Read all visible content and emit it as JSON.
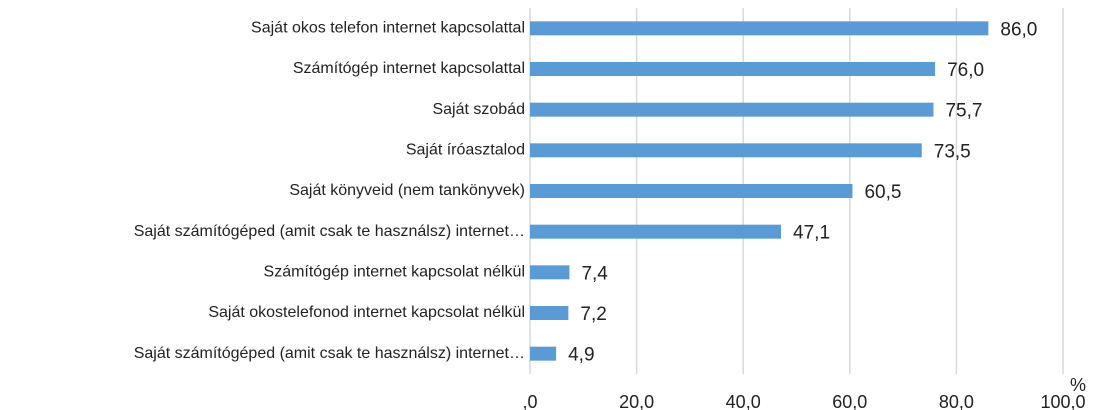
{
  "chart_data": {
    "type": "bar",
    "orientation": "horizontal",
    "categories": [
      "Saját okos telefon internet kapcsolattal",
      "Számítógép internet kapcsolattal",
      "Saját szobád",
      "Saját íróasztalod",
      "Saját könyveid (nem tankönyvek)",
      "Saját számítógéped (amit csak te használsz) internet…",
      "Számítógép internet kapcsolat nélkül",
      "Saját okostelefonod internet kapcsolat nélkül",
      "Saját számítógéped (amit csak te használsz) internet…"
    ],
    "values": [
      86.0,
      76.0,
      75.7,
      73.5,
      60.5,
      47.1,
      7.4,
      7.2,
      4.9
    ],
    "value_labels": [
      "86,0",
      "76,0",
      "75,7",
      "73,5",
      "60,5",
      "47,1",
      "7,4",
      "7,2",
      "4,9"
    ],
    "color": "#5b9bd5",
    "xlim": [
      0,
      100
    ],
    "xticks": [
      {
        "value": 0,
        "label": ",0"
      },
      {
        "value": 20,
        "label": "20,0"
      },
      {
        "value": 40,
        "label": "40,0"
      },
      {
        "value": 60,
        "label": "60,0"
      },
      {
        "value": 80,
        "label": "80,0"
      },
      {
        "value": 100,
        "label": "100,0"
      }
    ],
    "x_label": "%",
    "grid": true
  }
}
